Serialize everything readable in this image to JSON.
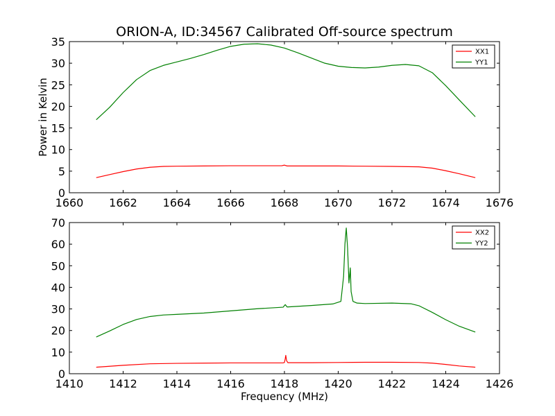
{
  "chart_data": [
    {
      "type": "line",
      "title": "ORION-A, ID:34567 Calibrated Off-source spectrum",
      "xlabel": "",
      "ylabel": "Power in Kelvin",
      "xlim": [
        1660,
        1676
      ],
      "ylim": [
        0,
        35
      ],
      "xticks": [
        1660,
        1662,
        1664,
        1666,
        1668,
        1670,
        1672,
        1674,
        1676
      ],
      "yticks": [
        0,
        5,
        10,
        15,
        20,
        25,
        30,
        35
      ],
      "grid": false,
      "legend": "top-right",
      "series": [
        {
          "name": "XX1",
          "color": "#ff0000",
          "x": [
            1661.0,
            1661.5,
            1662.0,
            1662.5,
            1663.0,
            1663.5,
            1664.0,
            1665.0,
            1666.0,
            1667.0,
            1667.9,
            1668.0,
            1668.1,
            1669.0,
            1670.0,
            1671.0,
            1672.0,
            1673.0,
            1673.5,
            1674.0,
            1674.5,
            1675.1
          ],
          "y": [
            3.5,
            4.2,
            4.9,
            5.5,
            5.9,
            6.1,
            6.15,
            6.2,
            6.25,
            6.25,
            6.25,
            6.4,
            6.2,
            6.2,
            6.2,
            6.15,
            6.1,
            6.0,
            5.7,
            5.1,
            4.4,
            3.5
          ]
        },
        {
          "name": "YY1",
          "color": "#008000",
          "x": [
            1661.0,
            1661.5,
            1662.0,
            1662.5,
            1663.0,
            1663.5,
            1664.0,
            1664.5,
            1665.0,
            1665.5,
            1666.0,
            1666.5,
            1667.0,
            1667.5,
            1668.0,
            1668.5,
            1669.0,
            1669.5,
            1670.0,
            1670.5,
            1671.0,
            1671.5,
            1672.0,
            1672.5,
            1673.0,
            1673.5,
            1674.0,
            1674.5,
            1675.1
          ],
          "y": [
            16.9,
            19.8,
            23.2,
            26.2,
            28.3,
            29.5,
            30.3,
            31.1,
            32.0,
            33.0,
            33.9,
            34.4,
            34.5,
            34.2,
            33.5,
            32.4,
            31.2,
            30.0,
            29.3,
            29.0,
            28.9,
            29.1,
            29.5,
            29.7,
            29.4,
            27.8,
            24.8,
            21.5,
            17.6
          ]
        }
      ]
    },
    {
      "type": "line",
      "title": "",
      "xlabel": "Frequency (MHz)",
      "ylabel": "",
      "xlim": [
        1410,
        1426
      ],
      "ylim": [
        0,
        70
      ],
      "xticks": [
        1410,
        1412,
        1414,
        1416,
        1418,
        1420,
        1422,
        1424,
        1426
      ],
      "yticks": [
        0,
        10,
        20,
        30,
        40,
        50,
        60,
        70
      ],
      "grid": false,
      "legend": "top-right",
      "series": [
        {
          "name": "XX2",
          "color": "#ff0000",
          "x": [
            1411.0,
            1412.0,
            1413.0,
            1414.0,
            1415.0,
            1416.0,
            1417.0,
            1417.95,
            1418.0,
            1418.03,
            1418.05,
            1418.08,
            1418.13,
            1419.0,
            1420.0,
            1421.0,
            1422.0,
            1423.0,
            1423.5,
            1424.0,
            1424.5,
            1425.1
          ],
          "y": [
            3.0,
            3.9,
            4.6,
            4.8,
            4.9,
            5.0,
            5.0,
            5.0,
            5.2,
            7.0,
            8.5,
            6.0,
            5.1,
            5.1,
            5.2,
            5.3,
            5.3,
            5.2,
            4.9,
            4.3,
            3.6,
            3.0
          ]
        },
        {
          "name": "YY2",
          "color": "#008000",
          "x": [
            1411.0,
            1411.5,
            1412.0,
            1412.5,
            1413.0,
            1413.5,
            1414.0,
            1415.0,
            1416.0,
            1417.0,
            1417.95,
            1418.03,
            1418.1,
            1419.0,
            1419.8,
            1420.1,
            1420.2,
            1420.25,
            1420.3,
            1420.35,
            1420.4,
            1420.45,
            1420.48,
            1420.55,
            1420.7,
            1421.0,
            1422.0,
            1422.7,
            1423.0,
            1423.5,
            1424.0,
            1424.5,
            1425.1
          ],
          "y": [
            17.0,
            19.8,
            22.8,
            25.1,
            26.5,
            27.2,
            27.5,
            28.1,
            29.1,
            30.1,
            30.8,
            32.0,
            30.9,
            31.6,
            32.3,
            33.5,
            45.0,
            60.0,
            67.5,
            58.0,
            42.0,
            49.0,
            38.0,
            33.5,
            32.7,
            32.5,
            32.7,
            32.4,
            31.5,
            28.4,
            25.0,
            22.0,
            19.3
          ]
        }
      ]
    }
  ]
}
